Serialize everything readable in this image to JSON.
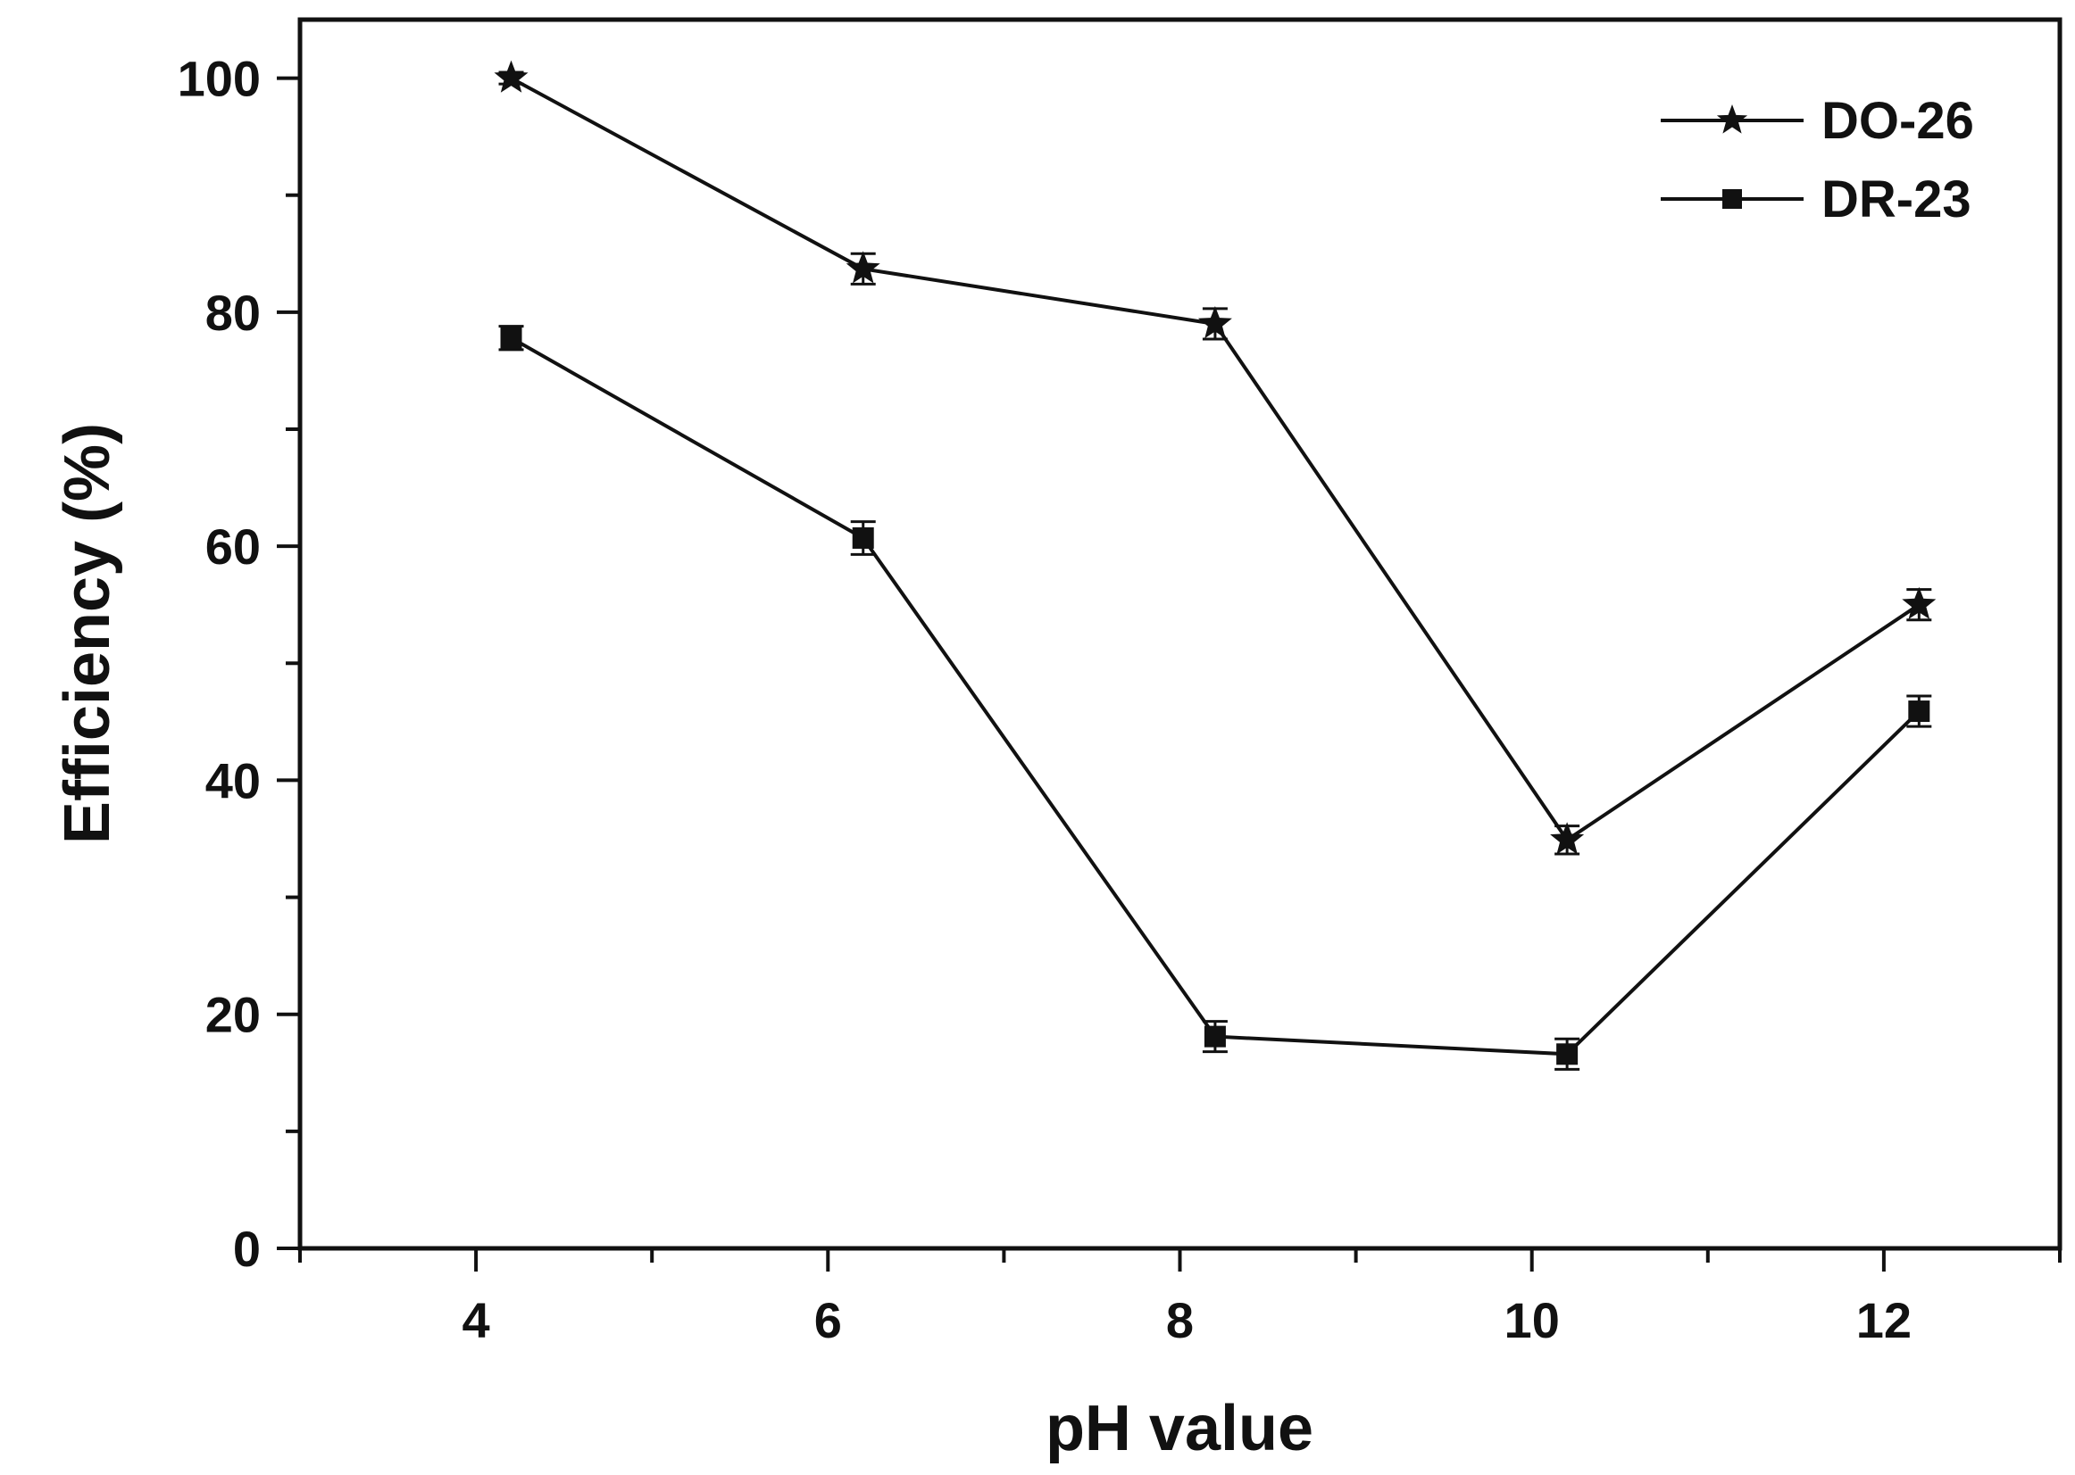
{
  "chart_data": {
    "type": "line",
    "title": "",
    "xlabel": "pH value",
    "ylabel": "Efficiency (%)",
    "xlim": [
      3,
      13
    ],
    "ylim": [
      0,
      105
    ],
    "x_ticks": [
      4,
      6,
      8,
      10,
      12
    ],
    "y_ticks": [
      0,
      20,
      40,
      60,
      80,
      100
    ],
    "grid": false,
    "legend_position": "top-right",
    "series": [
      {
        "name": "DO-26",
        "marker": "star",
        "x": [
          4.2,
          6.2,
          8.2,
          10.2,
          12.2
        ],
        "values": [
          100,
          83.7,
          79.0,
          34.9,
          55.0
        ],
        "errors": [
          0.5,
          1.3,
          1.3,
          1.2,
          1.3
        ]
      },
      {
        "name": "DR-23",
        "marker": "square",
        "x": [
          4.2,
          6.2,
          8.2,
          10.2,
          12.2
        ],
        "values": [
          77.8,
          60.7,
          18.1,
          16.6,
          45.9
        ],
        "errors": [
          1.0,
          1.4,
          1.3,
          1.3,
          1.3
        ]
      }
    ]
  }
}
